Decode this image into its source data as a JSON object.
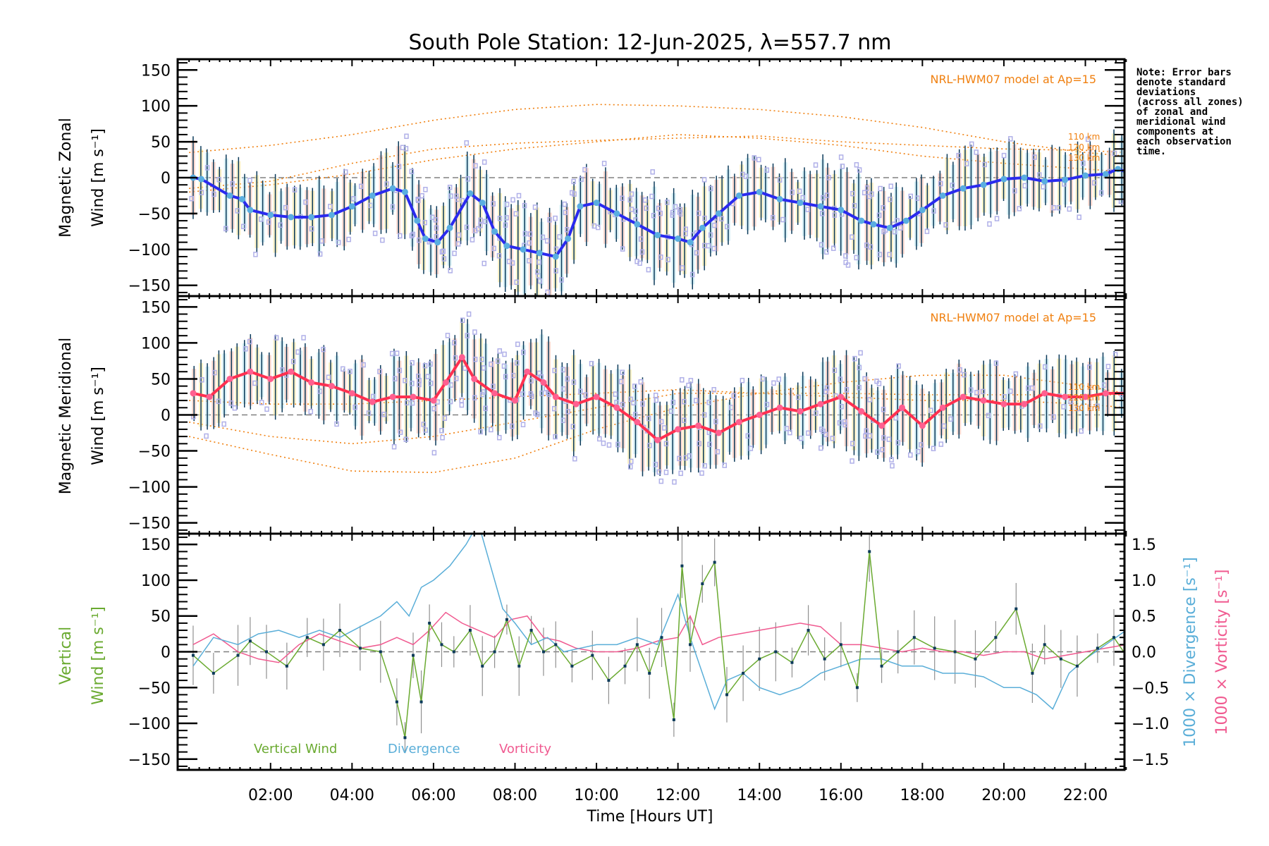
{
  "title": "South Pole Station: 12-Jun-2025, λ=557.7 nm",
  "note": "Note: Error bars\ndenote standard\ndeviations\n(across all zones)\nof zonal and\nmeridional wind\ncomponents at\neach observation\ntime.",
  "colors": {
    "zonal": "#2a2aee",
    "zonal_marker": "#5aaee0",
    "meridional": "#ff3050",
    "meridional_marker": "#ff6090",
    "model": "#f08010",
    "vertical": "#6aaa30",
    "divergence": "#5aaed8",
    "vorticity": "#f05a90",
    "errorbar": "#0b3a5a",
    "scatter": "#b0b0e8",
    "zero_line": "#808080"
  },
  "chart_data": [
    {
      "type": "line",
      "name": "zonal",
      "title": "South Pole Station: 12-Jun-2025, λ=557.7 nm",
      "ylabel_line1": "Magnetic Zonal",
      "ylabel_line2": "Wind [m s⁻¹]",
      "ylim": [
        -165,
        165
      ],
      "yticks": [
        -150,
        -100,
        -50,
        0,
        50,
        100,
        150
      ],
      "ytick_labels": [
        "−150",
        "−100",
        "−50",
        "0",
        "50",
        "100",
        "150"
      ],
      "model_label": "NRL-HWM07 model at Ap=15",
      "model_km_labels": [
        "110 km",
        "120 km",
        "130 km"
      ],
      "x": [
        0.1,
        0.3,
        1.0,
        1.3,
        1.5,
        2.0,
        2.5,
        3.0,
        3.5,
        4.0,
        4.5,
        5.0,
        5.3,
        5.6,
        5.8,
        6.1,
        6.4,
        6.9,
        7.2,
        7.5,
        7.8,
        8.2,
        8.6,
        9.0,
        9.3,
        9.6,
        10.0,
        10.5,
        11.0,
        11.5,
        12.0,
        12.3,
        12.6,
        13.0,
        13.5,
        14.0,
        14.5,
        15.0,
        15.5,
        16.0,
        16.5,
        16.8,
        17.2,
        17.6,
        18.0,
        18.5,
        19.0,
        19.5,
        20.0,
        20.5,
        21.0,
        21.5,
        22.0,
        22.5,
        22.8,
        23.0
      ],
      "values": [
        0,
        -2,
        -25,
        -30,
        -45,
        -52,
        -55,
        -55,
        -52,
        -40,
        -25,
        -15,
        -20,
        -60,
        -85,
        -90,
        -70,
        -22,
        -35,
        -75,
        -95,
        -100,
        -105,
        -110,
        -85,
        -40,
        -35,
        -50,
        -65,
        -80,
        -85,
        -90,
        -70,
        -50,
        -25,
        -20,
        -30,
        -35,
        -40,
        -45,
        -60,
        -65,
        -70,
        -60,
        -45,
        -25,
        -15,
        -10,
        -2,
        0,
        -5,
        -3,
        3,
        5,
        12,
        8
      ],
      "model_curves": [
        {
          "name": "110 km",
          "x": [
            0,
            2,
            4,
            6,
            8,
            10,
            12,
            14,
            16,
            18,
            20,
            22,
            23
          ],
          "values": [
            35,
            45,
            60,
            80,
            95,
            102,
            100,
            95,
            85,
            70,
            50,
            35,
            30
          ]
        },
        {
          "name": "120 km",
          "x": [
            0,
            2,
            4,
            6,
            8,
            10,
            12,
            14,
            16,
            18,
            20,
            22,
            23
          ],
          "values": [
            -15,
            -5,
            20,
            40,
            48,
            52,
            55,
            58,
            50,
            45,
            40,
            38,
            35
          ]
        },
        {
          "name": "130 km",
          "x": [
            0,
            2,
            4,
            6,
            8,
            10,
            12,
            14,
            16,
            18,
            20,
            22,
            23
          ],
          "values": [
            -20,
            -10,
            5,
            25,
            40,
            50,
            60,
            55,
            45,
            30,
            20,
            12,
            8
          ]
        }
      ]
    },
    {
      "type": "line",
      "name": "meridional",
      "ylabel_line1": "Magnetic Meridional",
      "ylabel_line2": "Wind [m s⁻¹]",
      "ylim": [
        -165,
        165
      ],
      "yticks": [
        -150,
        -100,
        -50,
        0,
        50,
        100,
        150
      ],
      "ytick_labels": [
        "−150",
        "−100",
        "−50",
        "0",
        "50",
        "100",
        "150"
      ],
      "model_label": "NRL-HWM07 model at Ap=15",
      "model_km_labels": [
        "110 km",
        "120 km",
        "130 km"
      ],
      "x": [
        0.1,
        0.5,
        1.0,
        1.5,
        2.0,
        2.5,
        3.0,
        3.5,
        4.0,
        4.5,
        5.0,
        5.5,
        6.0,
        6.3,
        6.7,
        7.0,
        7.5,
        8.0,
        8.3,
        8.7,
        9.0,
        9.5,
        10.0,
        10.5,
        11.0,
        11.5,
        12.0,
        12.5,
        13.0,
        13.5,
        14.0,
        14.5,
        15.0,
        15.5,
        16.0,
        16.5,
        17.0,
        17.5,
        18.0,
        18.5,
        19.0,
        19.5,
        20.0,
        20.5,
        21.0,
        21.5,
        22.0,
        22.5,
        23.0
      ],
      "values": [
        30,
        25,
        50,
        60,
        50,
        60,
        45,
        40,
        30,
        18,
        25,
        25,
        20,
        45,
        80,
        50,
        30,
        20,
        60,
        45,
        25,
        15,
        25,
        10,
        -10,
        -35,
        -20,
        -15,
        -25,
        -10,
        0,
        10,
        5,
        15,
        25,
        5,
        -15,
        10,
        -15,
        10,
        25,
        20,
        15,
        15,
        30,
        25,
        25,
        30,
        30
      ],
      "model_curves": [
        {
          "name": "110 km",
          "x": [
            0,
            2,
            4,
            6,
            8,
            10,
            12,
            14,
            16,
            18,
            20,
            22,
            23
          ],
          "values": [
            -30,
            -55,
            -78,
            -80,
            -60,
            -20,
            10,
            30,
            45,
            55,
            55,
            40,
            30
          ]
        },
        {
          "name": "120 km",
          "x": [
            0,
            2,
            4,
            6,
            8,
            10,
            12,
            14,
            16,
            18,
            20,
            22,
            23
          ],
          "values": [
            -10,
            -30,
            -40,
            -30,
            -10,
            10,
            30,
            30,
            30,
            28,
            28,
            28,
            28
          ]
        },
        {
          "name": "130 km",
          "x": [
            0,
            2,
            4,
            6,
            8,
            10,
            12,
            14,
            16,
            18,
            20,
            22,
            23
          ],
          "values": [
            20,
            15,
            15,
            20,
            25,
            30,
            35,
            30,
            25,
            20,
            20,
            15,
            10
          ]
        }
      ]
    },
    {
      "type": "line",
      "name": "vertical",
      "ylabel_line1": "Vertical",
      "ylabel_line2": "Wind [m s⁻¹]",
      "ylim": [
        -165,
        165
      ],
      "yticks": [
        -150,
        -100,
        -50,
        0,
        50,
        100,
        150
      ],
      "ytick_labels": [
        "−150",
        "−100",
        "−50",
        "0",
        "50",
        "100",
        "150"
      ],
      "y2lim": [
        -1.65,
        1.65
      ],
      "y2ticks": [
        -1.5,
        -1.0,
        -0.5,
        0.0,
        0.5,
        1.0,
        1.5
      ],
      "y2tick_labels": [
        "−1.5",
        "−1.0",
        "−0.5",
        "0.0",
        "0.5",
        "1.0",
        "1.5"
      ],
      "y2label_divergence": "1000 × Divergence [s⁻¹]",
      "y2label_vorticity": "1000 × Vorticity [s⁻¹]",
      "xlabel": "Time [Hours UT]",
      "xlim": [
        -0.28,
        22.96
      ],
      "xticks": [
        2,
        4,
        6,
        8,
        10,
        12,
        14,
        16,
        18,
        20,
        22
      ],
      "xtick_labels": [
        "02:00",
        "04:00",
        "06:00",
        "08:00",
        "10:00",
        "12:00",
        "14:00",
        "16:00",
        "18:00",
        "20:00",
        "22:00"
      ],
      "legend": [
        "Vertical Wind",
        "Divergence",
        "Vorticity"
      ],
      "series": [
        {
          "name": "Vertical Wind",
          "x": [
            0.1,
            0.6,
            1.2,
            1.5,
            1.9,
            2.4,
            2.9,
            3.3,
            3.7,
            4.2,
            4.7,
            5.1,
            5.3,
            5.5,
            5.7,
            5.9,
            6.2,
            6.5,
            6.9,
            7.2,
            7.5,
            7.8,
            8.1,
            8.4,
            8.7,
            9.0,
            9.4,
            9.9,
            10.3,
            10.7,
            11.0,
            11.3,
            11.6,
            11.9,
            12.1,
            12.3,
            12.6,
            12.9,
            13.2,
            13.6,
            14.0,
            14.4,
            14.8,
            15.2,
            15.6,
            16.0,
            16.4,
            16.7,
            17.0,
            17.4,
            17.8,
            18.3,
            18.8,
            19.3,
            19.8,
            20.3,
            20.7,
            21.0,
            21.4,
            21.8,
            22.3,
            22.7,
            23.0
          ],
          "values": [
            -5,
            -30,
            -5,
            15,
            0,
            -20,
            20,
            10,
            30,
            5,
            0,
            -70,
            -120,
            -5,
            -70,
            40,
            10,
            0,
            30,
            -20,
            0,
            45,
            -20,
            30,
            0,
            10,
            -20,
            -5,
            -40,
            -20,
            10,
            -30,
            20,
            -95,
            120,
            10,
            95,
            125,
            -60,
            -30,
            -10,
            0,
            -15,
            30,
            -10,
            10,
            -50,
            140,
            -20,
            0,
            20,
            5,
            0,
            -10,
            20,
            60,
            -30,
            10,
            -10,
            -20,
            5,
            20,
            -5
          ]
        },
        {
          "name": "Divergence",
          "x": [
            0.1,
            0.6,
            1.2,
            1.7,
            2.2,
            2.7,
            3.2,
            3.7,
            4.2,
            4.7,
            5.1,
            5.4,
            5.7,
            6.0,
            6.4,
            6.8,
            7.1,
            7.4,
            7.7,
            8.0,
            8.4,
            8.8,
            9.2,
            9.6,
            10.0,
            10.5,
            11.0,
            11.5,
            12.0,
            12.3,
            12.6,
            12.9,
            13.2,
            13.6,
            14.0,
            14.5,
            15.0,
            15.5,
            16.0,
            16.5,
            17.0,
            17.5,
            18.0,
            18.5,
            19.0,
            19.5,
            20.0,
            20.4,
            20.8,
            21.2,
            21.6,
            22.0,
            22.5,
            23.0
          ],
          "values": [
            -0.2,
            0.2,
            0.1,
            0.25,
            0.3,
            0.2,
            0.3,
            0.2,
            0.35,
            0.5,
            0.7,
            0.5,
            0.9,
            1.0,
            1.2,
            1.5,
            1.8,
            1.2,
            0.6,
            0.4,
            0.1,
            0.2,
            0.0,
            0.05,
            0.1,
            0.1,
            0.2,
            0.1,
            0.8,
            0.2,
            -0.3,
            -0.8,
            -0.4,
            -0.3,
            -0.5,
            -0.6,
            -0.5,
            -0.3,
            -0.2,
            -0.1,
            -0.1,
            -0.2,
            -0.2,
            -0.3,
            -0.3,
            -0.35,
            -0.5,
            -0.5,
            -0.6,
            -0.8,
            -0.3,
            -0.1,
            0.1,
            0.3
          ]
        },
        {
          "name": "Vorticity",
          "x": [
            0.1,
            0.6,
            1.2,
            1.7,
            2.2,
            2.7,
            3.2,
            3.7,
            4.2,
            4.7,
            5.1,
            5.5,
            5.9,
            6.3,
            6.7,
            7.1,
            7.5,
            7.9,
            8.3,
            8.7,
            9.1,
            9.5,
            10.0,
            10.5,
            11.0,
            11.5,
            12.0,
            12.3,
            12.6,
            13.0,
            13.5,
            14.0,
            14.5,
            15.0,
            15.5,
            16.0,
            16.5,
            17.0,
            17.5,
            18.0,
            18.5,
            19.0,
            19.5,
            20.0,
            20.5,
            21.0,
            21.5,
            22.0,
            22.5,
            23.0
          ],
          "values": [
            0.1,
            0.25,
            0.0,
            -0.1,
            -0.15,
            0.1,
            0.25,
            0.15,
            0.05,
            0.1,
            0.2,
            0.1,
            0.3,
            0.55,
            0.4,
            0.3,
            0.2,
            0.45,
            0.5,
            0.2,
            0.15,
            0.05,
            0.0,
            0.0,
            0.05,
            0.15,
            0.2,
            0.5,
            0.1,
            0.2,
            0.25,
            0.3,
            0.35,
            0.4,
            0.35,
            0.1,
            0.1,
            0.05,
            0.0,
            0.05,
            0.0,
            0.0,
            -0.05,
            0.0,
            0.0,
            -0.1,
            -0.05,
            0.0,
            0.05,
            0.1
          ]
        }
      ]
    }
  ]
}
